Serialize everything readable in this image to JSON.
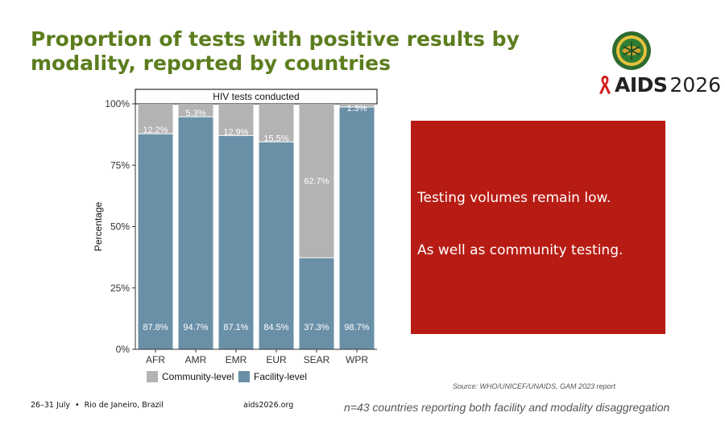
{
  "slide": {
    "title": "Proportion of tests with positive results by modality, reported by countries",
    "logo_brand": "AIDS",
    "logo_year": "2026",
    "callout_lines": [
      "Testing volumes remain low.",
      "As well as community testing."
    ],
    "source": "Source: WHO/UNICEF/UNAIDS, GAM 2023 report",
    "footer_dates": "26–31 July",
    "footer_separator": "•",
    "footer_location": "Rio de Janeiro, Brazil",
    "footer_url": "aids2026.org",
    "footnote": "n=43 countries reporting both facility and modality disaggregation"
  },
  "colors": {
    "title": "#5c7d1e",
    "community": "#b3b3b3",
    "facility": "#6a90a8",
    "callout_bg": "#b71c14"
  },
  "chart_data": {
    "type": "bar",
    "stacked": true,
    "facet_label": "HIV tests conducted",
    "categories": [
      "AFR",
      "AMR",
      "EMR",
      "EUR",
      "SEAR",
      "WPR"
    ],
    "ylabel": "Percentage",
    "ylim": [
      0,
      100
    ],
    "yticks": [
      0,
      25,
      50,
      75,
      100
    ],
    "ytick_labels": [
      "0%",
      "25%",
      "50%",
      "75%",
      "100%"
    ],
    "legend_position": "bottom",
    "series": [
      {
        "name": "Facility-level",
        "values": [
          87.8,
          94.7,
          87.1,
          84.5,
          37.3,
          98.7
        ],
        "labels": [
          "87.8%",
          "94.7%",
          "87.1%",
          "84.5%",
          "37.3%",
          "98.7%"
        ]
      },
      {
        "name": "Community-level",
        "values": [
          12.2,
          5.3,
          12.9,
          15.5,
          62.7,
          1.3
        ],
        "labels": [
          "12.2%",
          "5.3%",
          "12.9%",
          "15.5%",
          "62.7%",
          "1.3%"
        ]
      }
    ]
  }
}
